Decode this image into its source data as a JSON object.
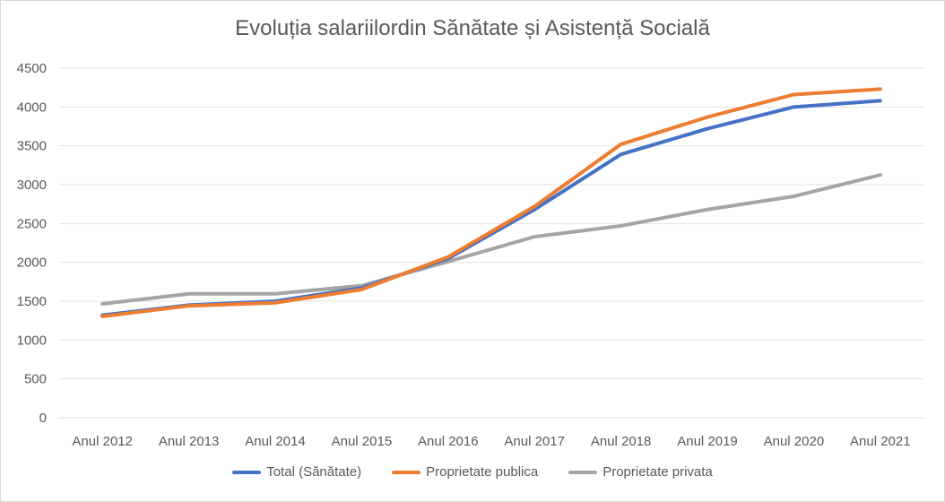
{
  "chart_data": {
    "type": "line",
    "title": "Evoluția salariilordin Sănătate și Asistență Socială",
    "categories": [
      "Anul 2012",
      "Anul 2013",
      "Anul 2014",
      "Anul 2015",
      "Anul 2016",
      "Anul 2017",
      "Anul 2018",
      "Anul 2019",
      "Anul 2020",
      "Anul 2021"
    ],
    "yticks": [
      "0",
      "500",
      "1000",
      "1500",
      "2000",
      "2500",
      "3000",
      "3500",
      "4000",
      "4500"
    ],
    "ylim": [
      0,
      4500
    ],
    "grid": true,
    "legend_position": "bottom",
    "series": [
      {
        "name": "Total (Sănătate)",
        "color": "#4472c4",
        "values": [
          1320,
          1450,
          1500,
          1670,
          2050,
          2680,
          3390,
          3720,
          4000,
          4080
        ]
      },
      {
        "name": "Proprietate publica",
        "color": "#ed7d31",
        "values": [
          1305,
          1440,
          1480,
          1650,
          2070,
          2720,
          3520,
          3870,
          4160,
          4230
        ]
      },
      {
        "name": "Proprietate privata",
        "color": "#a5a5a5",
        "values": [
          1465,
          1595,
          1595,
          1700,
          2010,
          2330,
          2470,
          2680,
          2850,
          3125
        ]
      }
    ]
  }
}
